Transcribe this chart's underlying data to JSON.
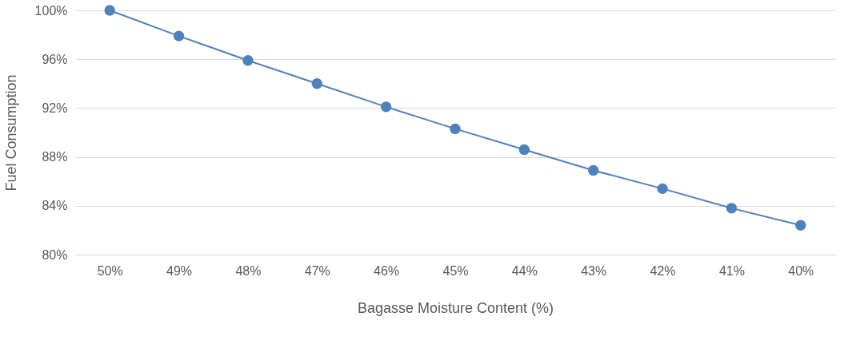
{
  "chart_data": {
    "type": "line",
    "xlabel": "Bagasse Moisture Content (%)",
    "ylabel": "Fuel Consumption",
    "categories": [
      "50%",
      "49%",
      "48%",
      "47%",
      "46%",
      "45%",
      "44%",
      "43%",
      "42%",
      "41%",
      "40%"
    ],
    "series": [
      {
        "color": "#4f81bd",
        "values": [
          100,
          97.9,
          95.9,
          94.0,
          92.1,
          90.3,
          88.6,
          86.9,
          85.4,
          83.8,
          82.4
        ]
      }
    ],
    "ylim": [
      80,
      100
    ],
    "yticks": [
      {
        "value": 80,
        "label": "80%"
      },
      {
        "value": 84,
        "label": "84%"
      },
      {
        "value": 88,
        "label": "88%"
      },
      {
        "value": 92,
        "label": "92%"
      },
      {
        "value": 96,
        "label": "96%"
      },
      {
        "value": 100,
        "label": "100%"
      }
    ],
    "grid": "y",
    "marker": "circle",
    "line_style": "solid"
  }
}
